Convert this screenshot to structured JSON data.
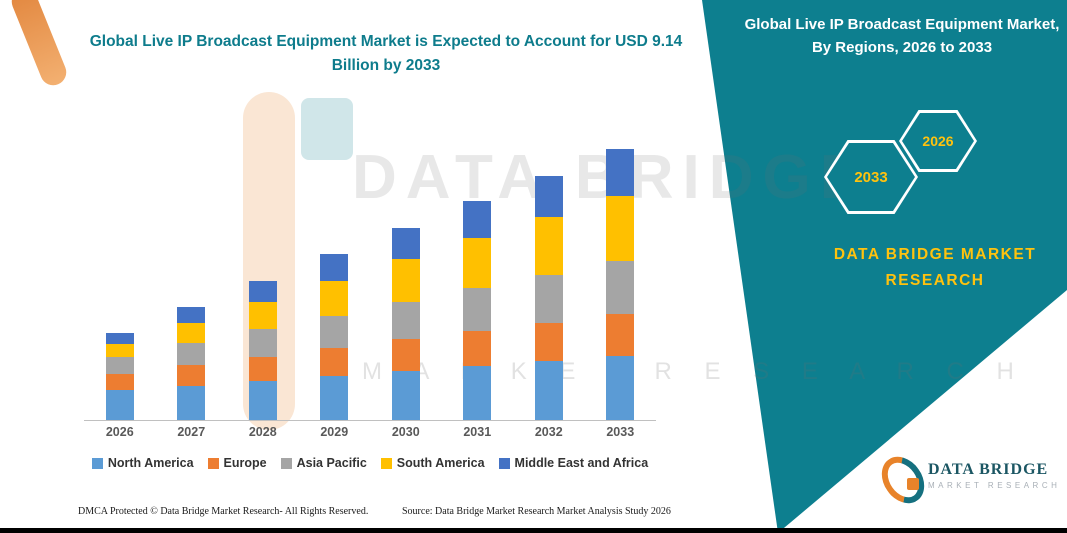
{
  "main_title": "Global Live IP Broadcast Equipment Market is Expected to Account for USD 9.14 Billion by 2033",
  "side_panel": {
    "title": "Global Live IP Broadcast Equipment Market, By Regions, 2026 to 2033",
    "hexagons": [
      {
        "year": "2033"
      },
      {
        "year": "2026"
      }
    ],
    "brand_name": "DATA BRIDGE MARKET RESEARCH",
    "background_color": "#0d7f8f",
    "accent_color": "#ffc20e"
  },
  "chart_data": {
    "type": "bar",
    "stacked": true,
    "title": "Global Live IP Broadcast Equipment Market, By Regions, 2026 to 2033",
    "value_unit": "USD Billion",
    "categories": [
      "2026",
      "2027",
      "2028",
      "2029",
      "2030",
      "2031",
      "2032",
      "2033"
    ],
    "series": [
      {
        "name": "North America",
        "color": "#5B9BD5",
        "values": [
          1.0,
          1.16,
          1.33,
          1.49,
          1.66,
          1.82,
          1.99,
          2.15
        ]
      },
      {
        "name": "Europe",
        "color": "#ED7D31",
        "values": [
          0.57,
          0.69,
          0.81,
          0.93,
          1.06,
          1.18,
          1.3,
          1.42
        ]
      },
      {
        "name": "Asia Pacific",
        "color": "#A5A5A5",
        "values": [
          0.57,
          0.75,
          0.92,
          1.1,
          1.27,
          1.45,
          1.62,
          1.8
        ]
      },
      {
        "name": "South America",
        "color": "#FFC000",
        "values": [
          0.41,
          0.67,
          0.92,
          1.18,
          1.43,
          1.69,
          1.94,
          2.2
        ]
      },
      {
        "name": "Middle East and Africa",
        "color": "#4472C4",
        "values": [
          0.38,
          0.55,
          0.72,
          0.89,
          1.06,
          1.23,
          1.4,
          1.57
        ]
      }
    ],
    "totals_estimated": [
      2.93,
      3.82,
      4.7,
      5.59,
      6.48,
      7.37,
      8.25,
      9.14
    ],
    "ylim": [
      0,
      10
    ],
    "grid": false,
    "y_axis_labels_visible": false,
    "legend_position": "bottom"
  },
  "watermark": {
    "line1": "DATA BRIDGE",
    "line2": "M A R K E T    R E S E A R C H"
  },
  "footer": {
    "dmca": "DMCA Protected © Data Bridge Market Research-  All Rights Reserved.",
    "source": "Source: Data Bridge Market Research  Market Analysis Study 2026"
  },
  "logo": {
    "name": "DATA BRIDGE",
    "subtitle": "MARKET RESEARCH"
  }
}
